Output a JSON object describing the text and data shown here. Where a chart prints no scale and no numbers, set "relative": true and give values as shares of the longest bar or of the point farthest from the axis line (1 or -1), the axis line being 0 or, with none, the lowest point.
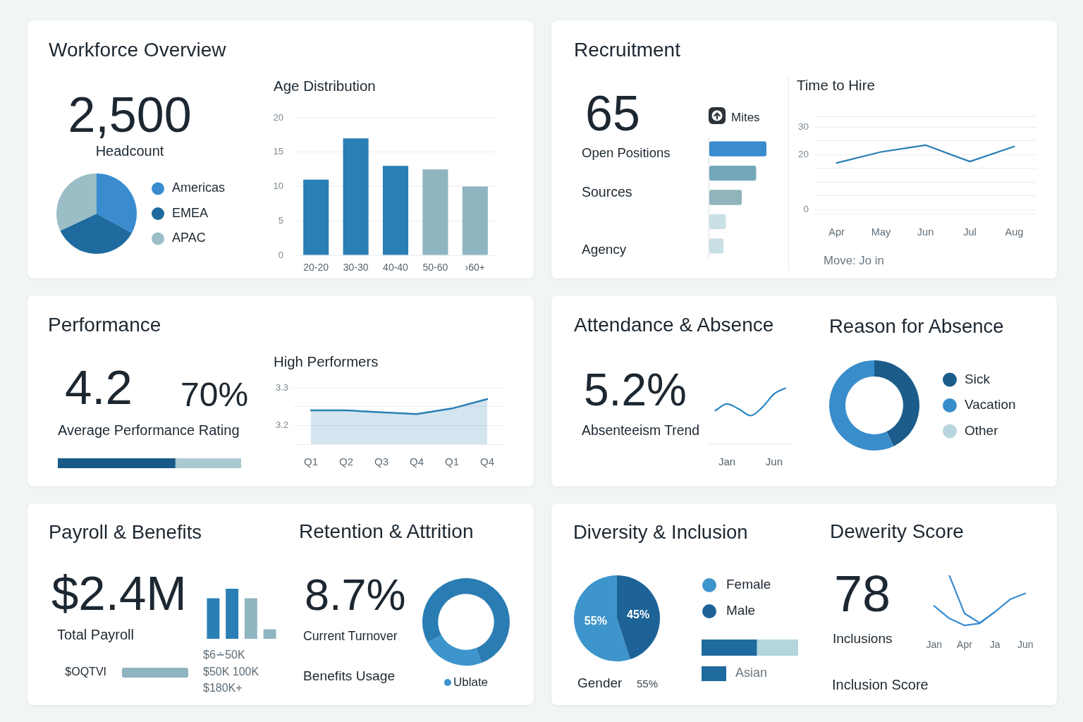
{
  "chart_data": [
    {
      "type": "other",
      "title": "Workforce Overview",
      "annotations": [
        "2,500",
        "Headcount"
      ]
    },
    {
      "type": "pie",
      "categories": [
        "Americas",
        "EMEA",
        "APAC"
      ],
      "values": [
        33,
        35,
        32
      ],
      "colors": [
        "#3a8ccf",
        "#1f6a9e",
        "#9abdc6"
      ],
      "legend": "right"
    },
    {
      "type": "bar",
      "title": "Age Distribution",
      "categories": [
        "20-20",
        "30-30",
        "40-40",
        "50-60",
        "›60+"
      ],
      "values": [
        11,
        17,
        13,
        12.5,
        10
      ],
      "colors": [
        "#2a7fb4",
        "#2a7fb4",
        "#2a7fb4",
        "#8fb5c0",
        "#8fb5c0"
      ],
      "ylim": [
        0,
        20
      ],
      "yticks": [
        0,
        5,
        10,
        15,
        20
      ],
      "grid": "y"
    },
    {
      "type": "other",
      "title": "Recruitment",
      "annotations": [
        "65",
        "Open Positions"
      ]
    },
    {
      "type": "bar",
      "title": "Sources",
      "orientation": "horizontal",
      "relative": true,
      "categories": [
        null,
        null,
        null,
        null,
        null
      ],
      "values": [
        1,
        0.82,
        0.57,
        0.29,
        0.25
      ],
      "colors": [
        "#3a8bd0",
        "#73a8ba",
        "#8fb4bc",
        "#c8e0e6",
        "#c8dfe5"
      ],
      "annotations": [
        "Mites",
        "Agency"
      ]
    },
    {
      "type": "line",
      "title": "Time to Hire",
      "categories": [
        "Apr",
        "May",
        "Jun",
        "Jul",
        "Aug"
      ],
      "values": [
        17,
        21,
        23.5,
        17.5,
        23
      ],
      "color": "#2a7fb4",
      "ylim": [
        -1.5,
        34
      ],
      "yticks": [
        {
          "value": -1.5,
          "label": null
        },
        0,
        {
          "value": 5,
          "label": null
        },
        {
          "value": 10,
          "label": null
        },
        {
          "value": 15,
          "label": null
        },
        20,
        {
          "value": 25,
          "label": null
        },
        30,
        {
          "value": 34,
          "label": null
        }
      ],
      "grid": "y",
      "annotations": [
        "Move: Jo in"
      ]
    },
    {
      "type": "other",
      "title": "Performance",
      "annotations": [
        "4.2",
        "70%",
        "Average Performance Rating"
      ]
    },
    {
      "type": "bar",
      "orientation": "horizontal",
      "stacked": true,
      "relative": true,
      "categories": [
        null
      ],
      "series": [
        {
          "color": "#175a88",
          "values": [
            0.64
          ]
        },
        {
          "color": "#a9c9d1",
          "values": [
            0.36
          ]
        }
      ]
    },
    {
      "type": "area",
      "title": "High Performers",
      "categories": [
        "Q1",
        "Q2",
        "Q3",
        "Q4",
        "Q1",
        "Q4"
      ],
      "values": [
        3.24,
        3.24,
        3.235,
        3.23,
        3.245,
        3.27
      ],
      "color": "#2a7fb4",
      "ylim": [
        3.15,
        3.3
      ],
      "yticks": [
        {
          "value": 3.15,
          "label": null
        },
        3.2,
        {
          "value": 3.25,
          "label": null
        },
        3.3
      ],
      "grid": "y"
    },
    {
      "type": "other",
      "title": "Attendance & Absence",
      "annotations": [
        "5.2%",
        "Absenteeism Trend"
      ]
    },
    {
      "type": "line",
      "relative": true,
      "categories": [
        null,
        "Jan",
        null,
        null,
        null,
        "Jun",
        null
      ],
      "values": [
        0.59,
        0.71,
        0.62,
        0.5,
        0.65,
        0.89,
        1
      ],
      "color": "#2a86c4"
    },
    {
      "type": "donut",
      "title": "Reason for Absence",
      "categories": [
        "Sick",
        "Vacation",
        "Other"
      ],
      "values": [
        43,
        57,
        0
      ],
      "colors": [
        "#1b5c8a",
        "#3a8dcb",
        "#b8d6de"
      ],
      "legend": "right"
    },
    {
      "type": "other",
      "title": "Payroll & Benefits",
      "annotations": [
        "$2.4M",
        "Total Payroll"
      ]
    },
    {
      "type": "bar",
      "orientation": "horizontal",
      "relative": true,
      "categories": [
        "$OQTVI"
      ],
      "values": [
        1
      ],
      "color": "#8fb4c0"
    },
    {
      "type": "bar",
      "relative": true,
      "categories": [
        null,
        null,
        null,
        null
      ],
      "values": [
        0.81,
        1,
        0.81,
        0.19
      ],
      "colors": [
        "#2a7fb4",
        "#2a7fb4",
        "#8fb5c0",
        "#8fb5c0"
      ],
      "annotations": [
        "$6∸50K",
        "$50K 100K",
        "$180K+"
      ]
    },
    {
      "type": "other",
      "title": "Retention & Attrition",
      "annotations": [
        "8.7%",
        "Current Turnover",
        "Benefits Usage"
      ]
    },
    {
      "type": "donut",
      "categories": [
        "Ublate",
        null
      ],
      "values": [
        23,
        77
      ],
      "colors": [
        "#3d95cc",
        "#2a7db3"
      ],
      "legend": "bottom"
    },
    {
      "type": "other",
      "title": "Diversity & Inclusion"
    },
    {
      "type": "pie",
      "title": "Gender",
      "categories": [
        "Female",
        "Male"
      ],
      "values": [
        55,
        45
      ],
      "value_labels": [
        "55%",
        "45%"
      ],
      "colors": [
        "#3d95cc",
        "#1d6397"
      ],
      "legend": "right",
      "annotations": [
        "55%"
      ]
    },
    {
      "type": "bar",
      "orientation": "horizontal",
      "stacked": true,
      "relative": true,
      "categories": [
        null
      ],
      "series": [
        {
          "name": "Asian",
          "color": "#1f6a9e",
          "values": [
            0.57
          ]
        },
        {
          "color": "#b3d6dd",
          "values": [
            0.43
          ]
        }
      ],
      "legend": "bottom left"
    },
    {
      "type": "other",
      "title": "Dewerity Score",
      "annotations": [
        "78",
        "Inclusions",
        "Inclusion Score"
      ]
    },
    {
      "type": "line",
      "relative": true,
      "categories": [
        "Jan",
        null,
        "Apr",
        null,
        "Ja",
        null,
        "Jun"
      ],
      "series": [
        {
          "color": "#3a8ccf",
          "values": [
            0.39,
            0.14,
            0,
            0.04,
            0.27,
            0.52,
            0.64
          ]
        },
        {
          "color": "#3a8ccf",
          "values": [
            null,
            1,
            0.24,
            0.05,
            0.27,
            null,
            null
          ]
        }
      ]
    }
  ]
}
